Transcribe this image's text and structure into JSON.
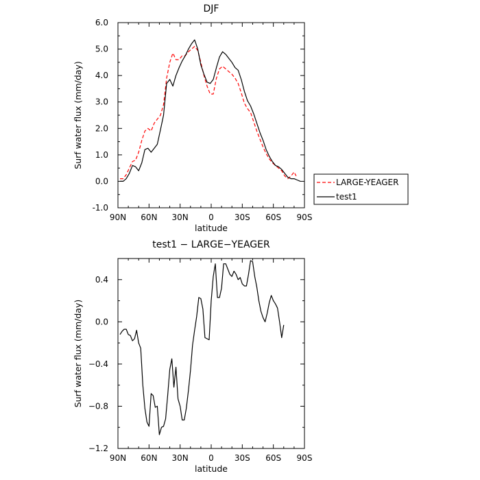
{
  "chart_data": [
    {
      "type": "line",
      "title": "DJF",
      "xlabel": "latitude",
      "ylabel": "Surf water flux (mm/day)",
      "xlim": [
        90,
        -90
      ],
      "ylim": [
        -1.0,
        6.0
      ],
      "x_ticks": [
        {
          "value": 90,
          "label": "90N"
        },
        {
          "value": 60,
          "label": "60N"
        },
        {
          "value": 30,
          "label": "30N"
        },
        {
          "value": 0,
          "label": "0"
        },
        {
          "value": -30,
          "label": "30S"
        },
        {
          "value": -60,
          "label": "60S"
        },
        {
          "value": -90,
          "label": "90S"
        }
      ],
      "y_ticks": [
        {
          "value": -1.0,
          "label": "-1.0"
        },
        {
          "value": 0.0,
          "label": "0.0"
        },
        {
          "value": 1.0,
          "label": "1.0"
        },
        {
          "value": 2.0,
          "label": "2.0"
        },
        {
          "value": 3.0,
          "label": "3.0"
        },
        {
          "value": 4.0,
          "label": "4.0"
        },
        {
          "value": 5.0,
          "label": "5.0"
        },
        {
          "value": 6.0,
          "label": "6.0"
        }
      ],
      "legend": {
        "placement": "right"
      },
      "series": [
        {
          "name": "LARGE-YEAGER",
          "color": "#ff0000",
          "dashed": true,
          "points": [
            [
              88,
              0.1
            ],
            [
              85,
              0.1
            ],
            [
              82,
              0.25
            ],
            [
              79,
              0.5
            ],
            [
              76,
              0.75
            ],
            [
              73,
              0.8
            ],
            [
              70,
              1.1
            ],
            [
              67,
              1.55
            ],
            [
              64,
              1.9
            ],
            [
              61,
              2.0
            ],
            [
              58,
              1.9
            ],
            [
              55,
              2.2
            ],
            [
              52,
              2.35
            ],
            [
              49,
              2.5
            ],
            [
              46,
              2.9
            ],
            [
              43,
              3.9
            ],
            [
              40,
              4.5
            ],
            [
              37,
              4.85
            ],
            [
              34,
              4.6
            ],
            [
              31,
              4.6
            ],
            [
              28,
              4.75
            ],
            [
              25,
              4.75
            ],
            [
              22,
              4.9
            ],
            [
              19,
              5.0
            ],
            [
              16,
              5.1
            ],
            [
              13,
              4.95
            ],
            [
              10,
              4.5
            ],
            [
              7,
              4.0
            ],
            [
              4,
              3.6
            ],
            [
              1,
              3.3
            ],
            [
              -2,
              3.3
            ],
            [
              -5,
              3.9
            ],
            [
              -8,
              4.25
            ],
            [
              -11,
              4.35
            ],
            [
              -14,
              4.25
            ],
            [
              -17,
              4.15
            ],
            [
              -20,
              4.05
            ],
            [
              -23,
              3.9
            ],
            [
              -26,
              3.7
            ],
            [
              -29,
              3.35
            ],
            [
              -32,
              2.95
            ],
            [
              -35,
              2.75
            ],
            [
              -38,
              2.6
            ],
            [
              -41,
              2.25
            ],
            [
              -44,
              1.9
            ],
            [
              -47,
              1.6
            ],
            [
              -50,
              1.3
            ],
            [
              -53,
              1.05
            ],
            [
              -56,
              0.85
            ],
            [
              -59,
              0.7
            ],
            [
              -62,
              0.6
            ],
            [
              -65,
              0.5
            ],
            [
              -68,
              0.4
            ],
            [
              -71,
              0.2
            ],
            [
              -74,
              0.1
            ],
            [
              -77,
              0.2
            ],
            [
              -80,
              0.35
            ],
            [
              -82,
              0.2
            ]
          ]
        },
        {
          "name": "test1",
          "color": "#000000",
          "dashed": false,
          "points": [
            [
              88,
              0.0
            ],
            [
              85,
              0.0
            ],
            [
              82,
              0.1
            ],
            [
              79,
              0.3
            ],
            [
              76,
              0.6
            ],
            [
              73,
              0.55
            ],
            [
              70,
              0.4
            ],
            [
              67,
              0.7
            ],
            [
              64,
              1.2
            ],
            [
              61,
              1.25
            ],
            [
              58,
              1.1
            ],
            [
              55,
              1.25
            ],
            [
              52,
              1.4
            ],
            [
              49,
              1.95
            ],
            [
              46,
              2.5
            ],
            [
              43,
              3.7
            ],
            [
              40,
              3.85
            ],
            [
              37,
              3.6
            ],
            [
              34,
              4.0
            ],
            [
              31,
              4.3
            ],
            [
              28,
              4.55
            ],
            [
              25,
              4.75
            ],
            [
              22,
              5.0
            ],
            [
              19,
              5.2
            ],
            [
              16,
              5.35
            ],
            [
              13,
              5.0
            ],
            [
              10,
              4.4
            ],
            [
              7,
              4.05
            ],
            [
              4,
              3.75
            ],
            [
              1,
              3.7
            ],
            [
              -2,
              3.85
            ],
            [
              -5,
              4.3
            ],
            [
              -8,
              4.7
            ],
            [
              -11,
              4.9
            ],
            [
              -14,
              4.8
            ],
            [
              -17,
              4.65
            ],
            [
              -20,
              4.5
            ],
            [
              -23,
              4.3
            ],
            [
              -26,
              4.2
            ],
            [
              -29,
              3.85
            ],
            [
              -32,
              3.4
            ],
            [
              -35,
              3.05
            ],
            [
              -38,
              2.85
            ],
            [
              -41,
              2.55
            ],
            [
              -44,
              2.2
            ],
            [
              -47,
              1.85
            ],
            [
              -50,
              1.55
            ],
            [
              -53,
              1.2
            ],
            [
              -56,
              0.95
            ],
            [
              -59,
              0.75
            ],
            [
              -62,
              0.6
            ],
            [
              -65,
              0.55
            ],
            [
              -68,
              0.45
            ],
            [
              -71,
              0.3
            ],
            [
              -74,
              0.15
            ],
            [
              -77,
              0.1
            ],
            [
              -80,
              0.1
            ],
            [
              -83,
              0.05
            ],
            [
              -86,
              0.0
            ]
          ]
        }
      ]
    },
    {
      "type": "line",
      "title": "test1 − LARGE−YEAGER",
      "xlabel": "latitude",
      "ylabel": "Surf water flux (mm/day)",
      "xlim": [
        90,
        -90
      ],
      "ylim": [
        -1.2,
        0.6
      ],
      "x_ticks": [
        {
          "value": 90,
          "label": "90N"
        },
        {
          "value": 60,
          "label": "60N"
        },
        {
          "value": 30,
          "label": "30N"
        },
        {
          "value": 0,
          "label": "0"
        },
        {
          "value": -30,
          "label": "30S"
        },
        {
          "value": -60,
          "label": "60S"
        },
        {
          "value": -90,
          "label": "90S"
        }
      ],
      "y_ticks": [
        {
          "value": -1.2,
          "label": "−1.2"
        },
        {
          "value": -0.8,
          "label": "−0.8"
        },
        {
          "value": -0.4,
          "label": "−0.4"
        },
        {
          "value": 0.0,
          "label": "0.0"
        },
        {
          "value": 0.4,
          "label": "0.4"
        }
      ],
      "series": [
        {
          "color": "#000000",
          "dashed": false,
          "points": [
            [
              88,
              -0.12
            ],
            [
              86,
              -0.09
            ],
            [
              84,
              -0.07
            ],
            [
              82,
              -0.07
            ],
            [
              80,
              -0.12
            ],
            [
              78,
              -0.13
            ],
            [
              76,
              -0.18
            ],
            [
              74,
              -0.16
            ],
            [
              72,
              -0.08
            ],
            [
              70,
              -0.2
            ],
            [
              68,
              -0.25
            ],
            [
              66,
              -0.6
            ],
            [
              64,
              -0.82
            ],
            [
              62,
              -0.95
            ],
            [
              60,
              -0.99
            ],
            [
              58,
              -0.68
            ],
            [
              56,
              -0.7
            ],
            [
              54,
              -0.81
            ],
            [
              52,
              -0.8
            ],
            [
              50,
              -1.07
            ],
            [
              48,
              -1.0
            ],
            [
              46,
              -0.99
            ],
            [
              44,
              -0.92
            ],
            [
              42,
              -0.7
            ],
            [
              40,
              -0.45
            ],
            [
              38,
              -0.35
            ],
            [
              36,
              -0.62
            ],
            [
              34,
              -0.43
            ],
            [
              32,
              -0.73
            ],
            [
              30,
              -0.8
            ],
            [
              28,
              -0.93
            ],
            [
              26,
              -0.93
            ],
            [
              24,
              -0.82
            ],
            [
              22,
              -0.65
            ],
            [
              20,
              -0.46
            ],
            [
              18,
              -0.22
            ],
            [
              16,
              -0.08
            ],
            [
              14,
              0.05
            ],
            [
              12,
              0.23
            ],
            [
              10,
              0.22
            ],
            [
              8,
              0.12
            ],
            [
              6,
              -0.15
            ],
            [
              4,
              -0.16
            ],
            [
              2,
              -0.17
            ],
            [
              0,
              0.2
            ],
            [
              -2,
              0.43
            ],
            [
              -4,
              0.55
            ],
            [
              -6,
              0.23
            ],
            [
              -8,
              0.23
            ],
            [
              -10,
              0.32
            ],
            [
              -12,
              0.55
            ],
            [
              -14,
              0.55
            ],
            [
              -16,
              0.5
            ],
            [
              -18,
              0.45
            ],
            [
              -20,
              0.43
            ],
            [
              -22,
              0.48
            ],
            [
              -24,
              0.45
            ],
            [
              -26,
              0.4
            ],
            [
              -28,
              0.42
            ],
            [
              -30,
              0.36
            ],
            [
              -32,
              0.34
            ],
            [
              -34,
              0.34
            ],
            [
              -36,
              0.45
            ],
            [
              -38,
              0.58
            ],
            [
              -40,
              0.57
            ],
            [
              -42,
              0.43
            ],
            [
              -44,
              0.33
            ],
            [
              -46,
              0.2
            ],
            [
              -48,
              0.1
            ],
            [
              -50,
              0.04
            ],
            [
              -52,
              0.0
            ],
            [
              -54,
              0.08
            ],
            [
              -56,
              0.18
            ],
            [
              -58,
              0.25
            ],
            [
              -60,
              0.2
            ],
            [
              -62,
              0.17
            ],
            [
              -64,
              0.13
            ],
            [
              -66,
              0.0
            ],
            [
              -68,
              -0.15
            ],
            [
              -70,
              -0.03
            ]
          ]
        }
      ]
    }
  ]
}
